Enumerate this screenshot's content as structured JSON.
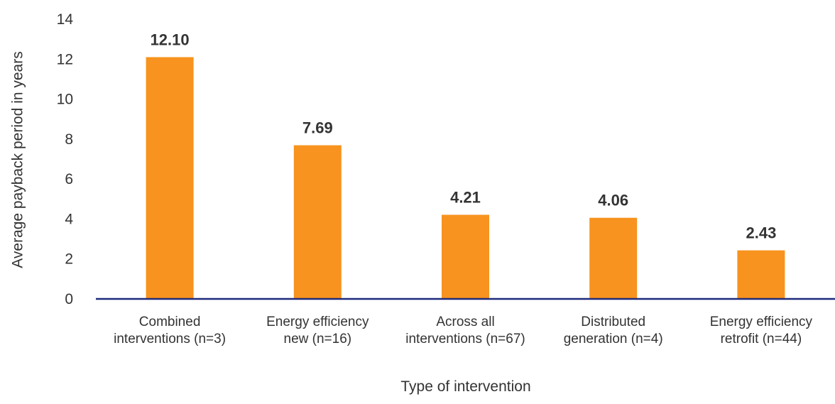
{
  "chart_data": {
    "type": "bar",
    "categories": [
      [
        "Combined",
        "interventions (n=3)"
      ],
      [
        "Energy efficiency",
        "new (n=16)"
      ],
      [
        "Across all",
        "interventions (n=67)"
      ],
      [
        "Distributed",
        "generation (n=4)"
      ],
      [
        "Energy efficiency",
        "retrofit (n=44)"
      ]
    ],
    "values": [
      12.1,
      7.69,
      4.21,
      4.06,
      2.43
    ],
    "value_labels": [
      "12.10",
      "7.69",
      "4.21",
      "4.06",
      "2.43"
    ],
    "ylabel": "Average payback period in years",
    "xlabel": "Type of intervention",
    "ylim": [
      0,
      14
    ],
    "yticks": [
      0,
      2,
      4,
      6,
      8,
      10,
      12,
      14
    ],
    "grid": false,
    "legend": "none",
    "colors": {
      "bar": "#F7931E",
      "axis": "#1F2A7C",
      "text": "#333333"
    }
  }
}
